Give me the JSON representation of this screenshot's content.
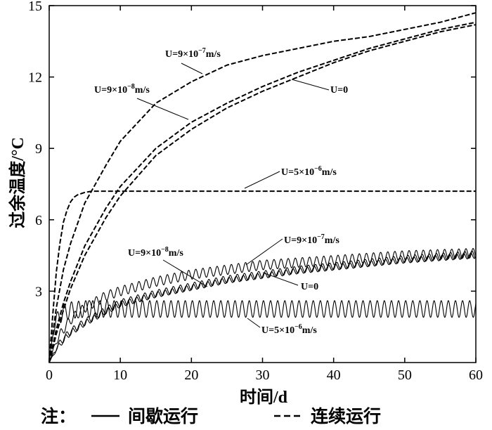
{
  "chart_data": {
    "type": "line",
    "xlabel": "时间/d",
    "ylabel": "过余温度/°C",
    "xlim": [
      0,
      60
    ],
    "ylim": [
      0,
      15
    ],
    "xticks": [
      0,
      10,
      20,
      30,
      40,
      50,
      60
    ],
    "yticks": [
      3,
      6,
      9,
      12,
      15
    ],
    "grid": false,
    "series": [
      {
        "name": "U=9×10⁻⁷m/s",
        "mode": "连续运行",
        "style": "dashed",
        "x": [
          0,
          0.5,
          1,
          2,
          3,
          5,
          8,
          10,
          15,
          20,
          25,
          30,
          35,
          40,
          45,
          50,
          55,
          60
        ],
        "y": [
          0,
          1.2,
          2.3,
          3.9,
          5.0,
          6.7,
          8.3,
          9.3,
          10.9,
          11.8,
          12.5,
          12.9,
          13.2,
          13.5,
          13.7,
          14.0,
          14.3,
          14.7
        ]
      },
      {
        "name": "U=9×10⁻⁸m/s",
        "mode": "连续运行",
        "style": "dashed",
        "x": [
          0,
          0.5,
          1,
          2,
          3,
          5,
          8,
          10,
          15,
          20,
          25,
          30,
          35,
          40,
          45,
          50,
          55,
          60
        ],
        "y": [
          0,
          0.7,
          1.4,
          2.5,
          3.4,
          4.9,
          6.5,
          7.4,
          9.0,
          10.1,
          10.9,
          11.6,
          12.2,
          12.7,
          13.2,
          13.6,
          14.0,
          14.3
        ]
      },
      {
        "name": "U=0",
        "mode": "连续运行",
        "style": "dashed",
        "x": [
          0,
          0.5,
          1,
          2,
          3,
          5,
          8,
          10,
          15,
          20,
          25,
          30,
          35,
          40,
          45,
          50,
          55,
          60
        ],
        "y": [
          0,
          0.6,
          1.2,
          2.2,
          3.1,
          4.5,
          6.1,
          7.0,
          8.7,
          9.8,
          10.7,
          11.4,
          12.0,
          12.6,
          13.1,
          13.5,
          13.9,
          14.2
        ]
      },
      {
        "name": "U=5×10⁻⁶m/s",
        "mode": "连续运行",
        "style": "dashed",
        "x": [
          0,
          0.5,
          1,
          1.5,
          2,
          2.5,
          3,
          3.5,
          4,
          5,
          6,
          8,
          10,
          20,
          30,
          40,
          50,
          60
        ],
        "y": [
          0,
          2.0,
          3.8,
          5.0,
          5.9,
          6.4,
          6.75,
          6.95,
          7.05,
          7.15,
          7.2,
          7.2,
          7.2,
          7.2,
          7.2,
          7.2,
          7.2,
          7.2
        ]
      },
      {
        "name": "U=9×10⁻⁷m/s",
        "mode": "间歇运行",
        "style": "solid",
        "x": [
          0,
          1,
          2,
          3,
          5,
          8,
          10,
          15,
          20,
          25,
          30,
          35,
          40,
          45,
          50,
          55,
          60
        ],
        "y": [
          0,
          0.9,
          1.4,
          1.8,
          2.3,
          2.8,
          3.0,
          3.4,
          3.7,
          3.9,
          4.1,
          4.2,
          4.3,
          4.4,
          4.5,
          4.55,
          4.6
        ],
        "amplitude": 0.2
      },
      {
        "name": "U=9×10⁻⁸m/s",
        "mode": "间歇运行",
        "style": "solid",
        "x": [
          0,
          1,
          2,
          3,
          5,
          8,
          10,
          15,
          20,
          25,
          30,
          35,
          40,
          45,
          50,
          55,
          60
        ],
        "y": [
          0,
          0.6,
          1.0,
          1.3,
          1.7,
          2.2,
          2.5,
          2.9,
          3.2,
          3.5,
          3.7,
          3.9,
          4.05,
          4.2,
          4.35,
          4.45,
          4.55
        ],
        "amplitude": 0.15
      },
      {
        "name": "U=0",
        "mode": "间歇运行",
        "style": "solid",
        "x": [
          0,
          1,
          2,
          3,
          5,
          8,
          10,
          15,
          20,
          25,
          30,
          35,
          40,
          45,
          50,
          55,
          60
        ],
        "y": [
          0,
          0.55,
          0.95,
          1.25,
          1.65,
          2.15,
          2.45,
          2.85,
          3.15,
          3.45,
          3.65,
          3.85,
          4.0,
          4.15,
          4.3,
          4.4,
          4.5
        ],
        "amplitude": 0.12
      },
      {
        "name": "U=5×10⁻⁶m/s",
        "mode": "间歇运行",
        "style": "solid",
        "x": [
          0,
          0.5,
          1,
          1.5,
          2,
          3,
          5,
          10,
          20,
          30,
          40,
          50,
          60
        ],
        "y": [
          0,
          1.2,
          1.8,
          2.0,
          2.1,
          2.2,
          2.25,
          2.25,
          2.25,
          2.25,
          2.25,
          2.25,
          2.25
        ],
        "amplitude": 0.35,
        "cycle_days": 1
      }
    ],
    "annotations": [
      {
        "text_base": "U=9×10",
        "exp": "−7",
        "unit": "m/s"
      },
      {
        "text_base": "U=9×10",
        "exp": "−8",
        "unit": "m/s"
      },
      {
        "text_base": "U=0",
        "exp": "",
        "unit": ""
      },
      {
        "text_base": "U=5×10",
        "exp": "−6",
        "unit": "m/s"
      },
      {
        "text_base": "U=9×10",
        "exp": "−7",
        "unit": "m/s"
      },
      {
        "text_base": "U=9×10",
        "exp": "−8",
        "unit": "m/s"
      },
      {
        "text_base": "U=0",
        "exp": "",
        "unit": ""
      },
      {
        "text_base": "U=5×10",
        "exp": "−6",
        "unit": "m/s"
      }
    ]
  },
  "legend": {
    "prefix": "注：",
    "solid_label": "间歇运行",
    "dashed_label": "连续运行"
  }
}
